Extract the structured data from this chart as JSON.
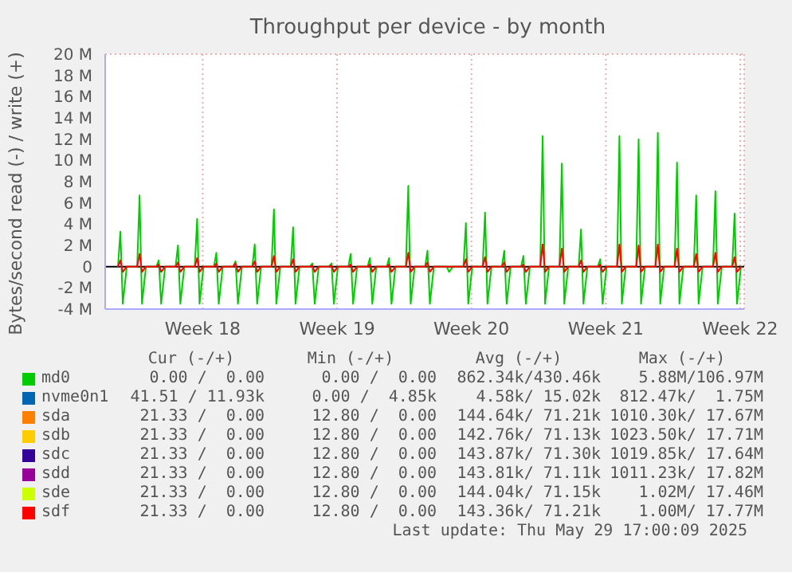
{
  "chart_data": {
    "type": "line",
    "title": "Throughput per device - by month",
    "ylabel": "Bytes/second read (-) / write (+)",
    "x": [
      "--04-27T02:00",
      "--04-27T05:00",
      "--04-27T08:00",
      "--04-27T13:00",
      "--04-28T02:00",
      "--04-28T05:00",
      "--04-28T08:00",
      "--04-28T13:00",
      "--04-29T02:00",
      "--04-29T05:00",
      "--04-29T08:00",
      "--04-29T13:00",
      "--04-30T02:00",
      "--04-30T05:00",
      "--04-30T08:00",
      "--04-30T13:00",
      "--05-01T02:00",
      "--05-01T05:00",
      "--05-01T08:00",
      "--05-01T13:00",
      "--05-02T02:00",
      "--05-02T05:00",
      "--05-02T08:00",
      "--05-02T13:00",
      "--05-03T02:00",
      "--05-03T05:00",
      "--05-03T08:00",
      "--05-03T13:00",
      "--05-04T02:00",
      "--05-04T05:00",
      "--05-04T08:00",
      "--05-04T13:00",
      "--05-05T02:00",
      "--05-05T05:00",
      "--05-05T08:00",
      "--05-05T13:00",
      "--05-06T02:00",
      "--05-06T05:00",
      "--05-06T08:00",
      "--05-06T13:00",
      "--05-07T02:00",
      "--05-07T05:00",
      "--05-07T08:00",
      "--05-07T13:00",
      "--05-08T02:00",
      "--05-08T05:00",
      "--05-08T08:00",
      "--05-08T13:00",
      "--05-09T02:00",
      "--05-09T05:00",
      "--05-09T08:00",
      "--05-09T13:00",
      "--05-10T02:00",
      "--05-10T05:00",
      "--05-10T08:00",
      "--05-10T13:00",
      "--05-11T02:00",
      "--05-11T05:00",
      "--05-11T08:00",
      "--05-11T13:00",
      "--05-12T02:00",
      "--05-12T05:00",
      "--05-12T08:00",
      "--05-12T13:00",
      "--05-13T02:00",
      "--05-13T05:00",
      "--05-13T08:00",
      "--05-13T13:00",
      "--05-14T02:00",
      "--05-14T05:00",
      "--05-14T08:00",
      "--05-14T13:00",
      "--05-15T02:00",
      "--05-15T05:00",
      "--05-15T08:00",
      "--05-15T13:00",
      "--05-16T02:00",
      "--05-16T05:00",
      "--05-16T08:00",
      "--05-16T13:00",
      "--05-17T02:00",
      "--05-17T05:00",
      "--05-17T08:00",
      "--05-17T13:00",
      "--05-18T02:00",
      "--05-18T05:00",
      "--05-18T08:00",
      "--05-18T13:00",
      "--05-19T02:00",
      "--05-19T05:00",
      "--05-19T08:00",
      "--05-19T13:00",
      "--05-20T02:00",
      "--05-20T05:00",
      "--05-20T08:00",
      "--05-20T13:00",
      "--05-21T02:00",
      "--05-21T05:00",
      "--05-21T08:00",
      "--05-21T13:00",
      "--05-22T02:00",
      "--05-22T05:00",
      "--05-22T08:00",
      "--05-22T13:00",
      "--05-23T02:00",
      "--05-23T05:00",
      "--05-23T08:00",
      "--05-23T13:00",
      "--05-24T02:00",
      "--05-24T05:00",
      "--05-24T08:00",
      "--05-24T13:00",
      "--05-25T02:00",
      "--05-25T05:00",
      "--05-25T08:00",
      "--05-25T13:00",
      "--05-26T02:00",
      "--05-26T05:00",
      "--05-26T08:00",
      "--05-26T13:00",
      "--05-27T02:00",
      "--05-27T05:00",
      "--05-27T08:00",
      "--05-27T13:00",
      "--05-28T02:00",
      "--05-28T05:00",
      "--05-28T08:00",
      "--05-28T13:00",
      "--05-29T02:00",
      "--05-29T05:00",
      "--05-29T08:00",
      "--05-29T13:00"
    ],
    "series": [
      {
        "name": "md0",
        "color": "#00cc00",
        "values": [
          0,
          3.3,
          -3.5,
          0,
          0,
          6.7,
          -3.5,
          0,
          0,
          0.6,
          -3.5,
          0,
          0,
          2.0,
          -3.5,
          0,
          0,
          4.5,
          -3.5,
          0,
          0,
          1.3,
          -3.5,
          0,
          0,
          0.5,
          -3.5,
          0,
          0,
          2.1,
          -3.5,
          0,
          0,
          5.4,
          -3.5,
          0,
          0,
          3.7,
          -3.5,
          0,
          0,
          0.3,
          -3.5,
          0,
          0,
          0.3,
          -3.5,
          0,
          0,
          1.2,
          -3.5,
          0,
          0,
          0.8,
          -3.5,
          0,
          0,
          0.8,
          -3.5,
          0,
          0,
          7.6,
          -3.5,
          0,
          0,
          1.5,
          -3.5,
          0,
          0,
          0,
          -0.5,
          0,
          0,
          4.1,
          -3.5,
          0,
          0,
          5.1,
          -3.5,
          0,
          0,
          1.5,
          -3.5,
          0,
          0,
          1.0,
          -3.5,
          0,
          0,
          12.3,
          -3.5,
          0,
          0,
          9.7,
          -3.5,
          0,
          0,
          3.5,
          -3.5,
          0,
          0,
          0.7,
          -3.5,
          0,
          0,
          12.3,
          -3.5,
          0,
          0,
          12.0,
          -3.5,
          0,
          0,
          12.6,
          -3.5,
          0,
          0,
          9.8,
          -3.5,
          0,
          0,
          6.7,
          -3.5,
          0,
          0,
          7.1,
          -3.5,
          0,
          0,
          5.0,
          -3.5,
          0
        ]
      },
      {
        "name": "nvme0n1",
        "color": "#0066b3",
        "values": [
          null,
          null,
          null,
          null,
          null,
          null,
          null,
          null,
          null,
          null,
          null,
          null,
          null,
          null,
          null,
          null,
          null,
          null,
          null,
          null,
          null,
          null,
          null,
          null,
          null,
          null,
          null,
          null,
          null,
          null,
          null,
          null,
          null,
          null,
          null,
          null,
          null,
          null,
          null,
          null,
          null,
          null,
          null,
          null,
          null,
          null,
          null,
          null,
          null,
          null,
          null,
          null,
          null,
          null,
          null,
          null,
          null,
          null,
          null,
          null,
          null,
          null,
          null,
          null,
          null,
          null,
          null,
          null,
          null,
          null,
          null,
          null,
          null,
          null,
          null,
          null,
          null,
          null,
          null,
          null,
          null,
          null,
          null,
          null,
          null,
          null,
          null,
          null,
          null,
          null,
          null,
          null,
          null,
          null,
          null,
          null,
          null,
          null,
          null,
          null,
          null,
          null,
          null,
          null,
          null,
          null,
          null,
          null,
          null,
          null,
          null,
          null,
          null,
          null,
          null,
          null,
          null,
          null,
          null,
          null,
          null,
          null,
          null,
          null,
          null,
          null,
          null,
          null,
          null,
          null,
          null,
          null
        ]
      },
      {
        "name": "sda",
        "color": "#ff8000",
        "values": [
          null,
          null,
          null,
          null,
          null,
          null,
          null,
          null,
          null,
          null,
          null,
          null,
          null,
          null,
          null,
          null,
          null,
          null,
          null,
          null,
          null,
          null,
          null,
          null,
          null,
          null,
          null,
          null,
          null,
          null,
          null,
          null,
          null,
          null,
          null,
          null,
          null,
          null,
          null,
          null,
          null,
          null,
          null,
          null,
          null,
          null,
          null,
          null,
          null,
          null,
          null,
          null,
          null,
          null,
          null,
          null,
          null,
          null,
          null,
          null,
          null,
          null,
          null,
          null,
          null,
          null,
          null,
          null,
          null,
          null,
          null,
          null,
          null,
          null,
          null,
          null,
          null,
          null,
          null,
          null,
          null,
          null,
          null,
          null,
          null,
          null,
          null,
          null,
          null,
          null,
          null,
          null,
          null,
          null,
          null,
          null,
          null,
          null,
          null,
          null,
          null,
          null,
          null,
          null,
          null,
          null,
          null,
          null,
          null,
          null,
          null,
          null,
          null,
          null,
          null,
          null,
          null,
          null,
          null,
          null,
          null,
          null,
          null,
          null,
          null,
          null,
          null,
          null,
          null,
          null,
          null,
          null
        ]
      },
      {
        "name": "sdb",
        "color": "#ffcc00",
        "values": [
          null,
          null,
          null,
          null,
          null,
          null,
          null,
          null,
          null,
          null,
          null,
          null,
          null,
          null,
          null,
          null,
          null,
          null,
          null,
          null,
          null,
          null,
          null,
          null,
          null,
          null,
          null,
          null,
          null,
          null,
          null,
          null,
          null,
          null,
          null,
          null,
          null,
          null,
          null,
          null,
          null,
          null,
          null,
          null,
          null,
          null,
          null,
          null,
          null,
          null,
          null,
          null,
          null,
          null,
          null,
          null,
          null,
          null,
          null,
          null,
          null,
          null,
          null,
          null,
          null,
          null,
          null,
          null,
          null,
          null,
          null,
          null,
          null,
          null,
          null,
          null,
          null,
          null,
          null,
          null,
          null,
          null,
          null,
          null,
          null,
          null,
          null,
          null,
          null,
          null,
          null,
          null,
          null,
          null,
          null,
          null,
          null,
          null,
          null,
          null,
          null,
          null,
          null,
          null,
          null,
          null,
          null,
          null,
          null,
          null,
          null,
          null,
          null,
          null,
          null,
          null,
          null,
          null,
          null,
          null,
          null,
          null,
          null,
          null,
          null,
          null,
          null,
          null,
          null,
          null,
          null,
          null
        ]
      },
      {
        "name": "sdc",
        "color": "#330099",
        "values": [
          null,
          null,
          null,
          null,
          null,
          null,
          null,
          null,
          null,
          null,
          null,
          null,
          null,
          null,
          null,
          null,
          null,
          null,
          null,
          null,
          null,
          null,
          null,
          null,
          null,
          null,
          null,
          null,
          null,
          null,
          null,
          null,
          null,
          null,
          null,
          null,
          null,
          null,
          null,
          null,
          null,
          null,
          null,
          null,
          null,
          null,
          null,
          null,
          null,
          null,
          null,
          null,
          null,
          null,
          null,
          null,
          null,
          null,
          null,
          null,
          null,
          null,
          null,
          null,
          null,
          null,
          null,
          null,
          null,
          null,
          null,
          null,
          null,
          null,
          null,
          null,
          null,
          null,
          null,
          null,
          null,
          null,
          null,
          null,
          null,
          null,
          null,
          null,
          null,
          null,
          null,
          null,
          null,
          null,
          null,
          null,
          null,
          null,
          null,
          null,
          null,
          null,
          null,
          null,
          null,
          null,
          null,
          null,
          null,
          null,
          null,
          null,
          null,
          null,
          null,
          null,
          null,
          null,
          null,
          null,
          null,
          null,
          null,
          null,
          null,
          null,
          null,
          null,
          null,
          null,
          null,
          null
        ]
      },
      {
        "name": "sdd",
        "color": "#990099",
        "values": [
          null,
          null,
          null,
          null,
          null,
          null,
          null,
          null,
          null,
          null,
          null,
          null,
          null,
          null,
          null,
          null,
          null,
          null,
          null,
          null,
          null,
          null,
          null,
          null,
          null,
          null,
          null,
          null,
          null,
          null,
          null,
          null,
          null,
          null,
          null,
          null,
          null,
          null,
          null,
          null,
          null,
          null,
          null,
          null,
          null,
          null,
          null,
          null,
          null,
          null,
          null,
          null,
          null,
          null,
          null,
          null,
          null,
          null,
          null,
          null,
          null,
          null,
          null,
          null,
          null,
          null,
          null,
          null,
          null,
          null,
          null,
          null,
          null,
          null,
          null,
          null,
          null,
          null,
          null,
          null,
          null,
          null,
          null,
          null,
          null,
          null,
          null,
          null,
          null,
          null,
          null,
          null,
          null,
          null,
          null,
          null,
          null,
          null,
          null,
          null,
          null,
          null,
          null,
          null,
          null,
          null,
          null,
          null,
          null,
          null,
          null,
          null,
          null,
          null,
          null,
          null,
          null,
          null,
          null,
          null,
          null,
          null,
          null,
          null,
          null,
          null,
          null,
          null,
          null,
          null,
          null,
          null
        ]
      },
      {
        "name": "sde",
        "color": "#ccff00",
        "values": [
          null,
          null,
          null,
          null,
          null,
          null,
          null,
          null,
          null,
          null,
          null,
          null,
          null,
          null,
          null,
          null,
          null,
          null,
          null,
          null,
          null,
          null,
          null,
          null,
          null,
          null,
          null,
          null,
          null,
          null,
          null,
          null,
          null,
          null,
          null,
          null,
          null,
          null,
          null,
          null,
          null,
          null,
          null,
          null,
          null,
          null,
          null,
          null,
          null,
          null,
          null,
          null,
          null,
          null,
          null,
          null,
          null,
          null,
          null,
          null,
          null,
          null,
          null,
          null,
          null,
          null,
          null,
          null,
          null,
          null,
          null,
          null,
          null,
          null,
          null,
          null,
          null,
          null,
          null,
          null,
          null,
          null,
          null,
          null,
          null,
          null,
          null,
          null,
          null,
          null,
          null,
          null,
          null,
          null,
          null,
          null,
          null,
          null,
          null,
          null,
          null,
          null,
          null,
          null,
          null,
          null,
          null,
          null,
          null,
          null,
          null,
          null,
          null,
          null,
          null,
          null,
          null,
          null,
          null,
          null,
          null,
          null,
          null,
          null,
          null,
          null,
          null,
          null,
          null,
          null,
          null,
          null
        ]
      },
      {
        "name": "sdf",
        "color": "#ff0000",
        "values": [
          0,
          0.6,
          -0.5,
          0,
          0,
          1.2,
          -0.5,
          0,
          0,
          0.2,
          -0.5,
          0,
          0,
          0.4,
          -0.5,
          0,
          0,
          0.8,
          -0.5,
          0,
          0,
          0.3,
          -0.5,
          0,
          0,
          0.3,
          -0.5,
          0,
          0,
          0.5,
          -0.5,
          0,
          0,
          1.0,
          -0.5,
          0,
          0,
          0.7,
          -0.5,
          0,
          0,
          0.1,
          -0.5,
          0,
          0,
          0.1,
          -0.5,
          0,
          0,
          0.2,
          -0.5,
          0,
          0,
          0.2,
          -0.5,
          0,
          0,
          0.2,
          -0.5,
          0,
          0,
          1.3,
          -0.5,
          0,
          0,
          0.4,
          -0.5,
          0,
          0,
          0,
          0,
          0,
          0,
          0.7,
          -0.5,
          0,
          0,
          0.9,
          -0.5,
          0,
          0,
          0.4,
          -0.5,
          0,
          0,
          0.2,
          -0.5,
          0,
          0,
          2.1,
          -0.5,
          0,
          0,
          1.7,
          -0.5,
          0,
          0,
          0.6,
          -0.5,
          0,
          0,
          0.2,
          -0.5,
          0,
          0,
          2.1,
          -0.5,
          0,
          0,
          2.0,
          -0.5,
          0,
          0,
          2.1,
          -0.5,
          0,
          0,
          1.7,
          -0.5,
          0,
          0,
          1.2,
          -0.5,
          0,
          0,
          1.3,
          -0.5,
          0,
          0,
          0.9,
          -0.5,
          0
        ]
      }
    ],
    "xlim": [
      "--04-26T10:00",
      "--05-29T17:00"
    ],
    "xticks": [
      {
        "value": "--05-01T12:00",
        "label": "Week 18"
      },
      {
        "value": "--05-08T12:00",
        "label": "Week 19"
      },
      {
        "value": "--05-15T12:00",
        "label": "Week 20"
      },
      {
        "value": "--05-22T12:00",
        "label": "Week 21"
      },
      {
        "value": "--05-29T12:00",
        "label": "Week 22"
      }
    ],
    "ylim": [
      -4,
      20
    ],
    "yticks": [
      {
        "value": -4,
        "label": "-4 M"
      },
      {
        "value": -2,
        "label": "-2 M"
      },
      0,
      {
        "value": 2,
        "label": "2 M"
      },
      {
        "value": 4,
        "label": "4 M"
      },
      {
        "value": 6,
        "label": "6 M"
      },
      {
        "value": 8,
        "label": "8 M"
      },
      {
        "value": 10,
        "label": "10 M"
      },
      {
        "value": 12,
        "label": "12 M"
      },
      {
        "value": 14,
        "label": "14 M"
      },
      {
        "value": 16,
        "label": "16 M"
      },
      {
        "value": 18,
        "label": "18 M"
      },
      {
        "value": 20,
        "label": "20 M"
      }
    ],
    "ref_lines": [
      {
        "axis": "y",
        "value": 0,
        "color": "#000000"
      }
    ],
    "grid": true,
    "legend": "bottom",
    "marker": "none",
    "line_style": "solid",
    "annotations": [
      "Cur (-/+)",
      "Min (-/+)",
      "Avg (-/+)",
      "Max (-/+)",
      "0.00 /  0.00",
      "0.00 /  0.00",
      "862.34k/430.46k",
      "5.88M/106.97M",
      "41.51 / 11.93k",
      "0.00 /  4.85k",
      "4.58k/ 15.02k",
      "812.47k/  1.75M",
      "21.33 /  0.00",
      "12.80 /  0.00",
      "144.64k/ 71.21k",
      "1010.30k/ 17.67M",
      "21.33 /  0.00",
      "12.80 /  0.00",
      "142.76k/ 71.13k",
      "1023.50k/ 17.71M",
      "21.33 /  0.00",
      "12.80 /  0.00",
      "143.87k/ 71.30k",
      "1019.85k/ 17.64M",
      "21.33 /  0.00",
      "12.80 /  0.00",
      "143.81k/ 71.11k",
      "1011.23k/ 17.82M",
      "21.33 /  0.00",
      "12.80 /  0.00",
      "144.04k/ 71.15k",
      "1.02M/ 17.46M",
      "21.33 /  0.00",
      "12.80 /  0.00",
      "143.36k/ 71.21k",
      "1.00M/ 17.77M",
      "Last update: Thu May 29 17:00:09 2025"
    ]
  }
}
